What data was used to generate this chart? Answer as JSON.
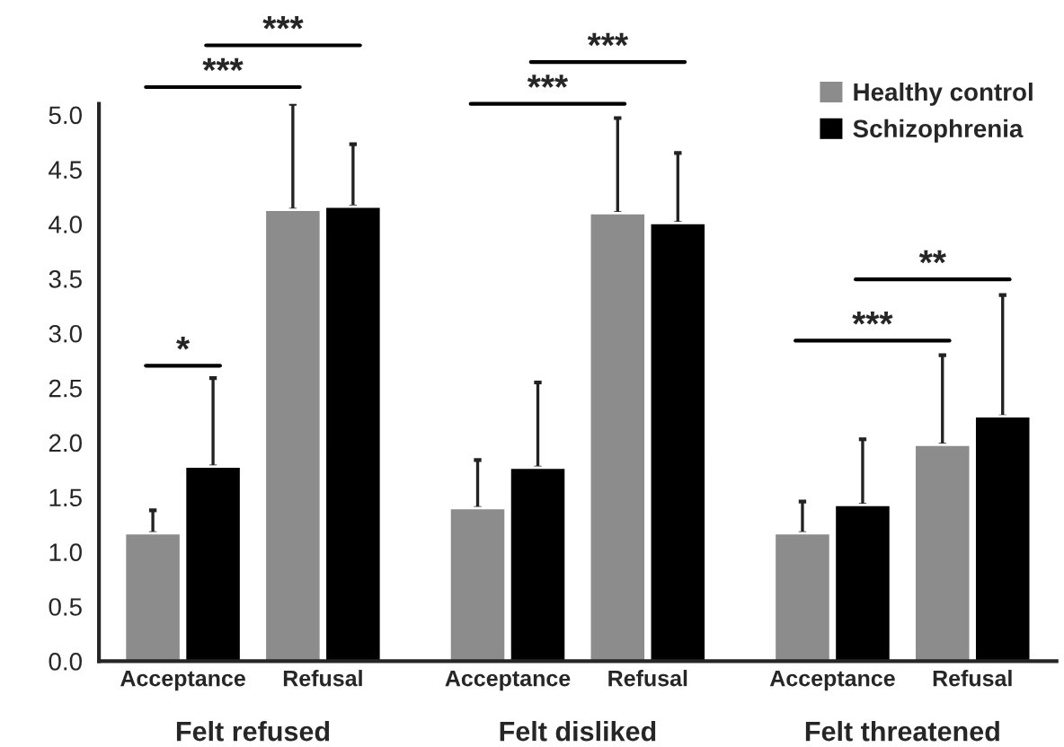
{
  "chart_data": {
    "type": "bar",
    "categories": [
      "Acceptance",
      "Refusal",
      "Acceptance",
      "Refusal",
      "Acceptance",
      "Refusal"
    ],
    "series": [
      {
        "name": "Healthy control",
        "color": "#8c8c8c",
        "values": [
          1.17,
          4.13,
          1.4,
          4.1,
          1.17,
          1.98
        ],
        "errors": [
          [
            1.17,
            1.38
          ],
          [
            4.13,
            5.1
          ],
          [
            1.4,
            1.84
          ],
          [
            4.1,
            4.97
          ],
          [
            1.17,
            1.46
          ],
          [
            1.98,
            2.8
          ]
        ]
      },
      {
        "name": "Schizophrenia",
        "color": "#000000",
        "values": [
          1.78,
          4.16,
          1.77,
          4.01,
          1.43,
          2.24
        ],
        "errors": [
          [
            1.78,
            2.59
          ],
          [
            4.16,
            4.73
          ],
          [
            1.77,
            2.55
          ],
          [
            4.01,
            4.65
          ],
          [
            1.43,
            2.03
          ],
          [
            2.24,
            3.35
          ]
        ]
      }
    ],
    "ylim": [
      0,
      5.1
    ],
    "yticks": [
      {
        "value": 0,
        "label": "0.0"
      },
      {
        "value": 0.5,
        "label": "0.5"
      },
      {
        "value": 1,
        "label": "1.0"
      },
      {
        "value": 1.5,
        "label": "1.5"
      },
      {
        "value": 2,
        "label": "2.0"
      },
      {
        "value": 2.5,
        "label": "2.5"
      },
      {
        "value": 3,
        "label": "3.0"
      },
      {
        "value": 3.5,
        "label": "3.5"
      },
      {
        "value": 4,
        "label": "4.0"
      },
      {
        "value": 4.5,
        "label": "4.5"
      },
      {
        "value": 5,
        "label": "5.0"
      }
    ],
    "annotations": [
      "*",
      "***",
      "***",
      "***",
      "***",
      "***",
      "**",
      "Felt refused",
      "Felt disliked",
      "Felt threatened"
    ],
    "grid": false,
    "legend": "top right"
  }
}
